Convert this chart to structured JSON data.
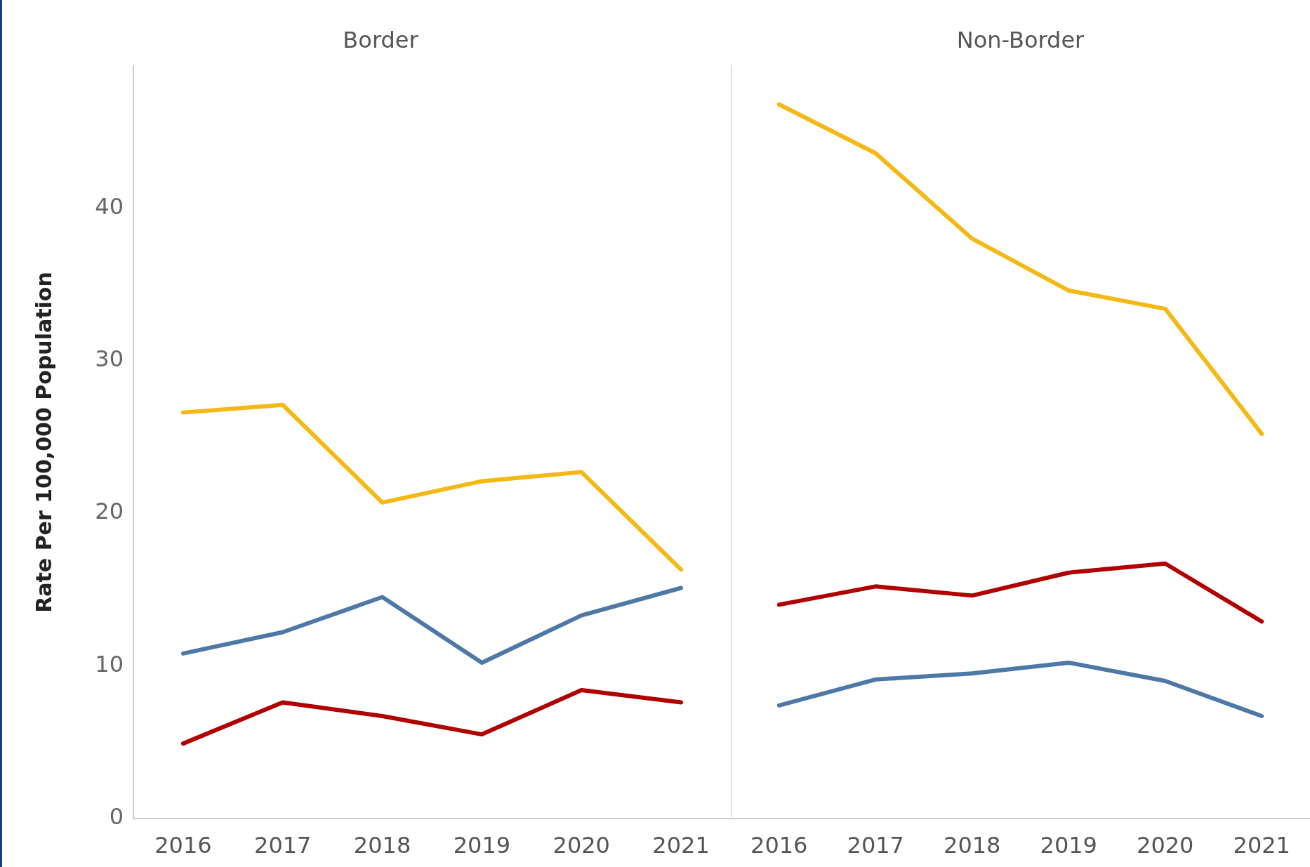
{
  "chart_data": [
    {
      "type": "line",
      "title": "Border",
      "ylabel": "Rate Per 100,000 Population",
      "categories": [
        "2016",
        "2017",
        "2018",
        "2019",
        "2020",
        "2021"
      ],
      "series": [
        {
          "color": "#f5b915",
          "values": [
            26.6,
            27.1,
            20.7,
            22.1,
            22.7,
            16.3
          ]
        },
        {
          "color": "#4e79a7",
          "values": [
            10.8,
            12.2,
            14.5,
            10.2,
            13.3,
            15.1
          ]
        },
        {
          "color": "#b00000",
          "values": [
            4.9,
            7.6,
            6.7,
            5.5,
            8.4,
            7.6
          ]
        }
      ],
      "ylim": [
        0,
        49.3
      ],
      "yticks": [
        0,
        10,
        20,
        30,
        40
      ],
      "grid": false,
      "legend": false,
      "marker": "none",
      "line_style": "solid"
    },
    {
      "type": "line",
      "title": "Non-Border",
      "categories": [
        "2016",
        "2017",
        "2018",
        "2019",
        "2020",
        "2021"
      ],
      "series": [
        {
          "color": "#f5b915",
          "values": [
            46.8,
            43.6,
            38.0,
            34.6,
            33.4,
            25.2
          ]
        },
        {
          "color": "#4e79a7",
          "values": [
            7.4,
            9.1,
            9.5,
            10.2,
            9.0,
            6.7
          ]
        },
        {
          "color": "#b00000",
          "values": [
            14.0,
            15.2,
            14.6,
            16.1,
            16.7,
            12.9
          ]
        }
      ],
      "ylim": [
        0,
        49.3
      ],
      "yticks": [
        0,
        10,
        20,
        30,
        40
      ],
      "tick_labels": "x",
      "grid": false,
      "legend": false,
      "marker": "none",
      "line_style": "solid"
    }
  ]
}
